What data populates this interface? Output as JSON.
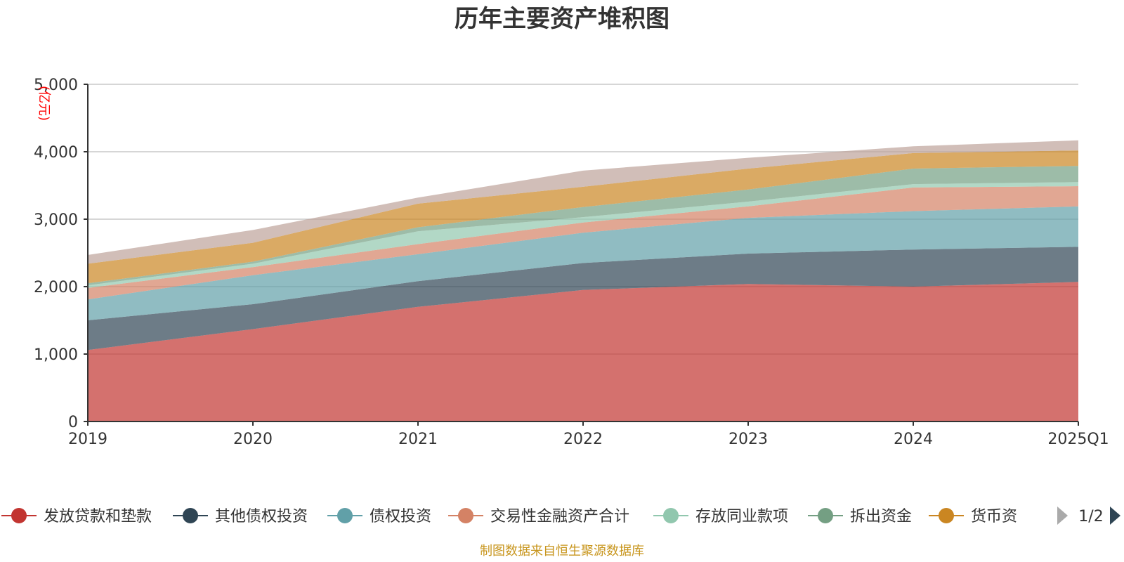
{
  "chart_data": {
    "type": "area",
    "title": "历年主要资产堆积图",
    "unit_label": "(亿元)",
    "x": [
      "2019",
      "2020",
      "2021",
      "2022",
      "2023",
      "2024",
      "2025Q1"
    ],
    "ylim": [
      0,
      5000
    ],
    "yticks": [
      "0",
      "1,000",
      "2,000",
      "3,000",
      "4,000",
      "5,000"
    ],
    "yticks_values": [
      0,
      1000,
      2000,
      3000,
      4000,
      5000
    ],
    "grid": true,
    "legend_position": "bottom",
    "series": [
      {
        "name": "发放贷款和垫款",
        "color": "#c23531",
        "values": [
          1060,
          1370,
          1700,
          1950,
          2040,
          2000,
          2070
        ]
      },
      {
        "name": "其他债权投资",
        "color": "#2f4554",
        "values": [
          440,
          370,
          380,
          400,
          450,
          550,
          520
        ]
      },
      {
        "name": "债权投资",
        "color": "#61a0a8",
        "values": [
          310,
          430,
          400,
          450,
          530,
          570,
          600
        ]
      },
      {
        "name": "交易性金融资产合计",
        "color": "#d48265",
        "values": [
          170,
          120,
          150,
          150,
          170,
          350,
          300
        ]
      },
      {
        "name": "存放同业款项",
        "color": "#91c7ae",
        "values": [
          40,
          50,
          190,
          80,
          70,
          50,
          60
        ]
      },
      {
        "name": "拆出资金",
        "color": "#749f83",
        "values": [
          30,
          30,
          60,
          150,
          180,
          230,
          240
        ]
      },
      {
        "name": "货币资金",
        "color": "#ca8622",
        "values": [
          290,
          280,
          350,
          300,
          310,
          230,
          230
        ]
      },
      {
        "name": "",
        "color": "#bda29a",
        "values": [
          130,
          190,
          90,
          240,
          160,
          100,
          150
        ]
      }
    ]
  },
  "legend": {
    "items": [
      "发放贷款和垫款",
      "其他债权投资",
      "债权投资",
      "交易性金融资产合计",
      "存放同业款项",
      "拆出资金",
      "货币资"
    ],
    "page": "1/2"
  },
  "footer": {
    "source": "制图数据来自恒生聚源数据库"
  }
}
